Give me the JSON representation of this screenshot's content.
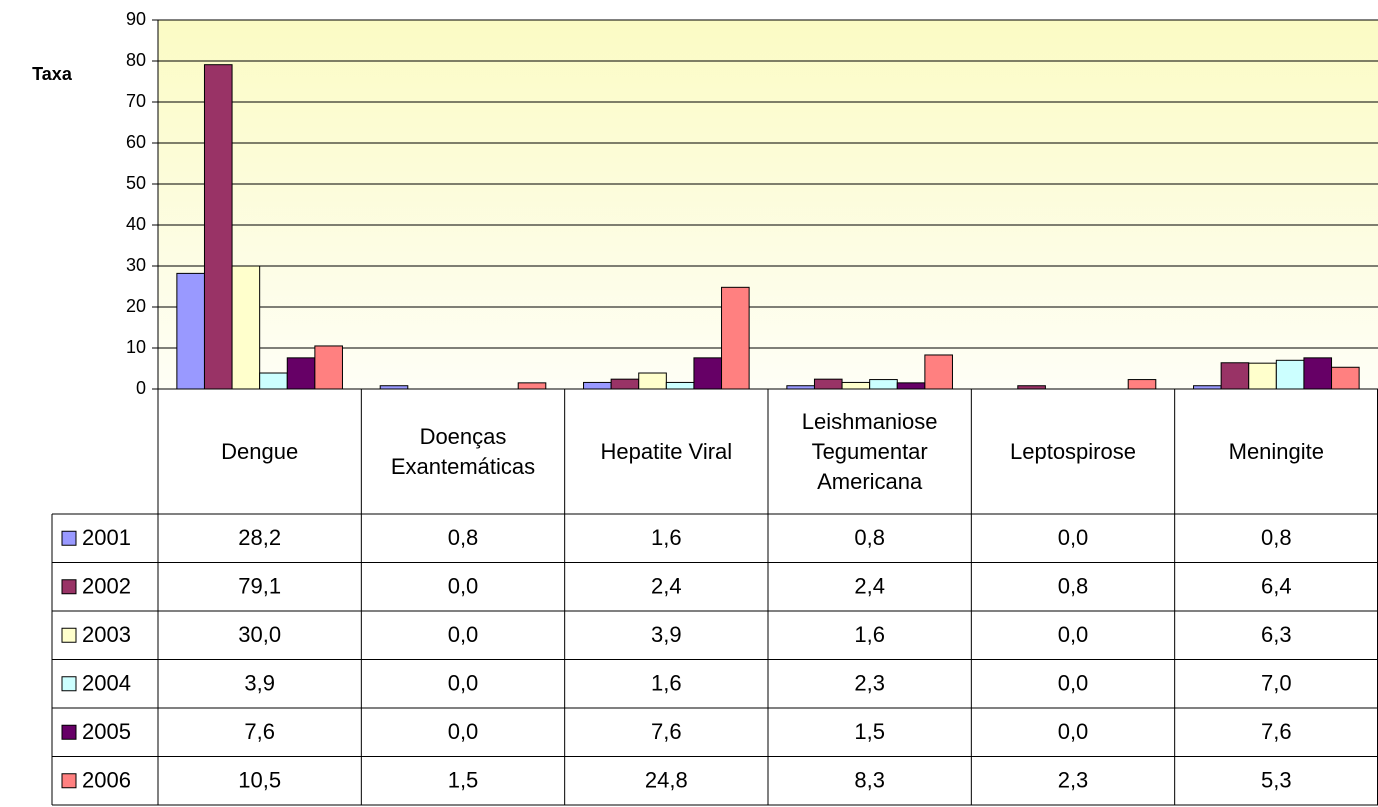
{
  "chart_data": {
    "type": "bar",
    "y_label": "Taxa",
    "categories": [
      "Dengue",
      "Doenças Exantemáticas",
      "Hepatite Viral",
      "Leishmaniose Tegumentar Americana",
      "Leptospirose",
      "Meningite"
    ],
    "series": [
      {
        "name": "2001",
        "color": "#9999ff",
        "values": [
          28.2,
          0.8,
          1.6,
          0.8,
          0.0,
          0.8
        ],
        "value_labels": [
          "28,2",
          "0,8",
          "1,6",
          "0,8",
          "0,0",
          "0,8"
        ]
      },
      {
        "name": "2002",
        "color": "#993366",
        "values": [
          79.1,
          0.0,
          2.4,
          2.4,
          0.8,
          6.4
        ],
        "value_labels": [
          "79,1",
          "0,0",
          "2,4",
          "2,4",
          "0,8",
          "6,4"
        ]
      },
      {
        "name": "2003",
        "color": "#ffffcc",
        "values": [
          30.0,
          0.0,
          3.9,
          1.6,
          0.0,
          6.3
        ],
        "value_labels": [
          "30,0",
          "0,0",
          "3,9",
          "1,6",
          "0,0",
          "6,3"
        ]
      },
      {
        "name": "2004",
        "color": "#ccffff",
        "values": [
          3.9,
          0.0,
          1.6,
          2.3,
          0.0,
          7.0
        ],
        "value_labels": [
          "3,9",
          "0,0",
          "1,6",
          "2,3",
          "0,0",
          "7,0"
        ]
      },
      {
        "name": "2005",
        "color": "#660066",
        "values": [
          7.6,
          0.0,
          7.6,
          1.5,
          0.0,
          7.6
        ],
        "value_labels": [
          "7,6",
          "0,0",
          "7,6",
          "1,5",
          "0,0",
          "7,6"
        ]
      },
      {
        "name": "2006",
        "color": "#ff8080",
        "values": [
          10.5,
          1.5,
          24.8,
          8.3,
          2.3,
          5.3
        ],
        "value_labels": [
          "10,5",
          "1,5",
          "24,8",
          "8,3",
          "2,3",
          "5,3"
        ]
      }
    ],
    "ylim": [
      0,
      90
    ],
    "yticks": [
      0,
      10,
      20,
      30,
      40,
      50,
      60,
      70,
      80,
      90
    ],
    "grid": true
  }
}
